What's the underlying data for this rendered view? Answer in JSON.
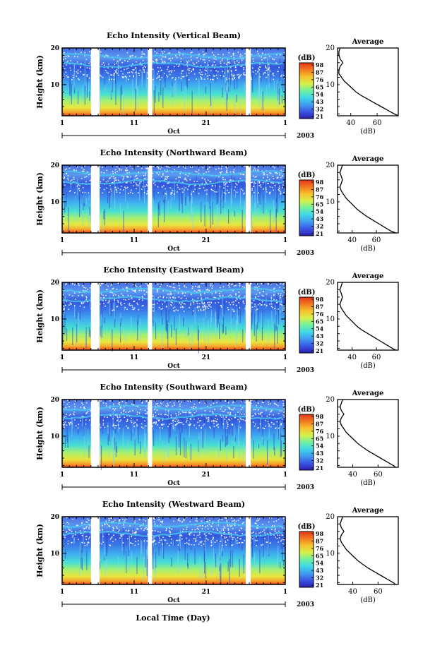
{
  "figure": {
    "xaxis_label": "Local Time (Day)",
    "month_label": "Oct",
    "year_label": "2003"
  },
  "colorbar": {
    "unit_label": "(dB)",
    "ticks": [
      "98",
      "87",
      "76",
      "65",
      "54",
      "43",
      "32",
      "21"
    ],
    "colors": [
      "#2b1fb0",
      "#3a55e6",
      "#3f9cf0",
      "#3fd7e8",
      "#6ff0a0",
      "#d6f04a",
      "#f7c12e",
      "#f17a1e",
      "#e8341c"
    ]
  },
  "chart_data": [
    {
      "type": "heatmap",
      "title": "Echo Intensity (Vertical Beam)",
      "ylabel": "Height (km)",
      "ylim": [
        1.5,
        20
      ],
      "yticks": [
        10,
        20
      ],
      "xlim": [
        1,
        32
      ],
      "xticks": [
        {
          "day": 1,
          "label": "1"
        },
        {
          "day": 11,
          "label": "11"
        },
        {
          "day": 21,
          "label": "21"
        },
        {
          "day": 32,
          "label": "1"
        }
      ],
      "data_gaps_days": [
        [
          5.0,
          6.2
        ],
        [
          12.9,
          13.5
        ],
        [
          26.5,
          27.2
        ]
      ],
      "value_unit": "dB",
      "value_range": [
        21,
        98
      ],
      "average_profile": {
        "title": "Average",
        "xlabel": "(dB)",
        "xticks": [
          40,
          60
        ],
        "xlim": [
          30,
          76
        ],
        "ylim": [
          1.5,
          20
        ],
        "yticks": [
          10,
          20
        ],
        "height_km": [
          1.5,
          2,
          3,
          4,
          5,
          6,
          7,
          8,
          9,
          10,
          11,
          12,
          13,
          14,
          15,
          16,
          17,
          18,
          19,
          20
        ],
        "values_db": [
          76,
          73,
          68,
          63,
          58,
          53,
          48,
          44,
          41,
          38,
          35,
          33,
          31,
          31,
          32,
          34,
          32,
          31,
          31,
          32
        ]
      }
    },
    {
      "type": "heatmap",
      "title": "Echo Intensity (Northward Beam)",
      "ylabel": "Height (km)",
      "ylim": [
        1.5,
        20
      ],
      "yticks": [
        10,
        20
      ],
      "xlim": [
        1,
        32
      ],
      "xticks": [
        {
          "day": 1,
          "label": "1"
        },
        {
          "day": 11,
          "label": "11"
        },
        {
          "day": 21,
          "label": "21"
        },
        {
          "day": 32,
          "label": "1"
        }
      ],
      "data_gaps_days": [
        [
          5.0,
          6.2
        ],
        [
          12.9,
          13.5
        ],
        [
          26.5,
          27.2
        ]
      ],
      "value_unit": "dB",
      "value_range": [
        21,
        98
      ],
      "average_profile": {
        "title": "Average",
        "xlabel": "(dB)",
        "xticks": [
          40,
          60
        ],
        "xlim": [
          28,
          78
        ],
        "ylim": [
          1.5,
          20
        ],
        "yticks": [
          10,
          20
        ],
        "height_km": [
          1.5,
          2,
          3,
          4,
          5,
          6,
          7,
          8,
          9,
          10,
          11,
          12,
          13,
          14,
          15,
          16,
          17,
          18,
          19,
          20
        ],
        "values_db": [
          76,
          72,
          67,
          62,
          57,
          52,
          48,
          44,
          41,
          38,
          35,
          33,
          31,
          30,
          31,
          32,
          31,
          30,
          31,
          32
        ]
      }
    },
    {
      "type": "heatmap",
      "title": "Echo Intensity (Eastward Beam)",
      "ylabel": "Height (km)",
      "ylim": [
        1.5,
        20
      ],
      "yticks": [
        10,
        20
      ],
      "xlim": [
        1,
        32
      ],
      "xticks": [
        {
          "day": 1,
          "label": "1"
        },
        {
          "day": 11,
          "label": "11"
        },
        {
          "day": 21,
          "label": "21"
        },
        {
          "day": 32,
          "label": "1"
        }
      ],
      "data_gaps_days": [
        [
          5.0,
          6.2
        ],
        [
          12.9,
          13.5
        ],
        [
          26.5,
          27.2
        ]
      ],
      "value_unit": "dB",
      "value_range": [
        21,
        98
      ],
      "average_profile": {
        "title": "Average",
        "xlabel": "(dB)",
        "xticks": [
          40,
          60
        ],
        "xlim": [
          28,
          78
        ],
        "ylim": [
          1.5,
          20
        ],
        "yticks": [
          10,
          20
        ],
        "height_km": [
          1.5,
          2,
          3,
          4,
          5,
          6,
          7,
          8,
          9,
          10,
          11,
          12,
          13,
          14,
          15,
          16,
          17,
          18,
          19,
          20
        ],
        "values_db": [
          76,
          73,
          68,
          63,
          58,
          53,
          48,
          44,
          41,
          38,
          35,
          33,
          31,
          30,
          31,
          32,
          31,
          30,
          31,
          32
        ]
      }
    },
    {
      "type": "heatmap",
      "title": "Echo Intensity (Southward Beam)",
      "ylabel": "Height (km)",
      "ylim": [
        1.5,
        20
      ],
      "yticks": [
        10,
        20
      ],
      "xlim": [
        1,
        32
      ],
      "xticks": [
        {
          "day": 1,
          "label": "1"
        },
        {
          "day": 11,
          "label": "11"
        },
        {
          "day": 21,
          "label": "21"
        },
        {
          "day": 32,
          "label": "1"
        }
      ],
      "data_gaps_days": [
        [
          5.0,
          6.2
        ],
        [
          12.9,
          13.5
        ],
        [
          26.5,
          27.2
        ]
      ],
      "value_unit": "dB",
      "value_range": [
        21,
        98
      ],
      "average_profile": {
        "title": "Average",
        "xlabel": "(dB)",
        "xticks": [
          40,
          60
        ],
        "xlim": [
          28,
          76
        ],
        "ylim": [
          1.5,
          20
        ],
        "yticks": [
          10,
          20
        ],
        "height_km": [
          1.5,
          2,
          3,
          4,
          5,
          6,
          7,
          8,
          9,
          10,
          11,
          12,
          13,
          14,
          15,
          16,
          17,
          18,
          19,
          20
        ],
        "values_db": [
          74,
          72,
          67,
          62,
          57,
          52,
          48,
          44,
          41,
          38,
          35,
          33,
          31,
          30,
          31,
          33,
          31,
          30,
          31,
          32
        ]
      }
    },
    {
      "type": "heatmap",
      "title": "Echo Intensity (Westward Beam)",
      "ylabel": "Height (km)",
      "ylim": [
        1.5,
        20
      ],
      "yticks": [
        10,
        20
      ],
      "xlim": [
        1,
        32
      ],
      "xticks": [
        {
          "day": 1,
          "label": "1"
        },
        {
          "day": 11,
          "label": "11"
        },
        {
          "day": 21,
          "label": "21"
        },
        {
          "day": 32,
          "label": "1"
        }
      ],
      "data_gaps_days": [
        [
          5.0,
          6.2
        ],
        [
          12.9,
          13.5
        ],
        [
          26.5,
          27.2
        ]
      ],
      "value_unit": "dB",
      "value_range": [
        21,
        98
      ],
      "average_profile": {
        "title": "Average",
        "xlabel": "(dB)",
        "xticks": [
          40,
          60
        ],
        "xlim": [
          28,
          76
        ],
        "ylim": [
          1.5,
          20
        ],
        "yticks": [
          10,
          20
        ],
        "height_km": [
          1.5,
          2,
          3,
          4,
          5,
          6,
          7,
          8,
          9,
          10,
          11,
          12,
          13,
          14,
          15,
          16,
          17,
          18,
          19,
          20
        ],
        "values_db": [
          74,
          72,
          67,
          62,
          57,
          52,
          48,
          44,
          41,
          38,
          35,
          33,
          31,
          30,
          31,
          33,
          31,
          30,
          31,
          32
        ]
      }
    }
  ]
}
